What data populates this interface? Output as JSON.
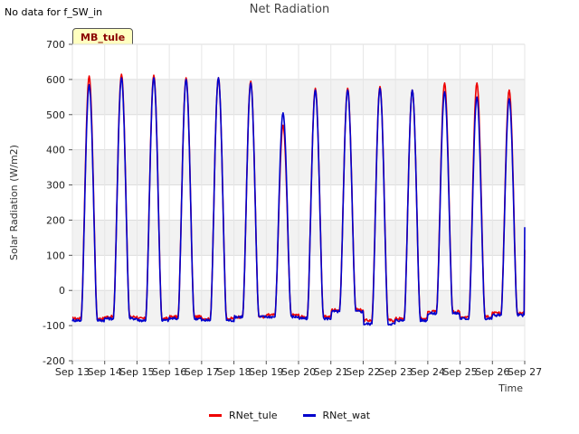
{
  "header": {
    "no_data_note": "No data for f_SW_in",
    "badge": "MB_tule"
  },
  "chart_data": {
    "type": "line",
    "title": "Net Radiation",
    "xlabel": "Time",
    "ylabel": "Solar Radiation (W/m2)",
    "ylim": [
      -200,
      700
    ],
    "yticks": [
      -200,
      -100,
      0,
      100,
      200,
      300,
      400,
      500,
      600,
      700
    ],
    "x_tick_labels": [
      "Sep 13",
      "Sep 14",
      "Sep 15",
      "Sep 16",
      "Sep 17",
      "Sep 18",
      "Sep 19",
      "Sep 20",
      "Sep 21",
      "Sep 22",
      "Sep 23",
      "Sep 24",
      "Sep 25",
      "Sep 26",
      "Sep 27"
    ],
    "xlim_days": [
      0,
      14
    ],
    "grid": true,
    "legend_position": "bottom-center",
    "series": [
      {
        "name": "RNet_tule",
        "color": "#ee0000",
        "daily_peaks": [
          610,
          615,
          612,
          605,
          605,
          595,
          470,
          575,
          575,
          580,
          570,
          590,
          590,
          570
        ],
        "night_values": [
          -80,
          -75,
          -80,
          -75,
          -80,
          -75,
          -70,
          -75,
          -55,
          -85,
          -80,
          -60,
          -75,
          -65
        ],
        "last_value": 115
      },
      {
        "name": "RNet_wat",
        "color": "#0000cc",
        "daily_peaks": [
          585,
          605,
          605,
          600,
          605,
          590,
          505,
          570,
          570,
          575,
          570,
          565,
          550,
          545
        ],
        "night_values": [
          -85,
          -80,
          -85,
          -80,
          -85,
          -75,
          -75,
          -80,
          -60,
          -95,
          -85,
          -65,
          -80,
          -70
        ],
        "last_value": 180
      }
    ]
  }
}
